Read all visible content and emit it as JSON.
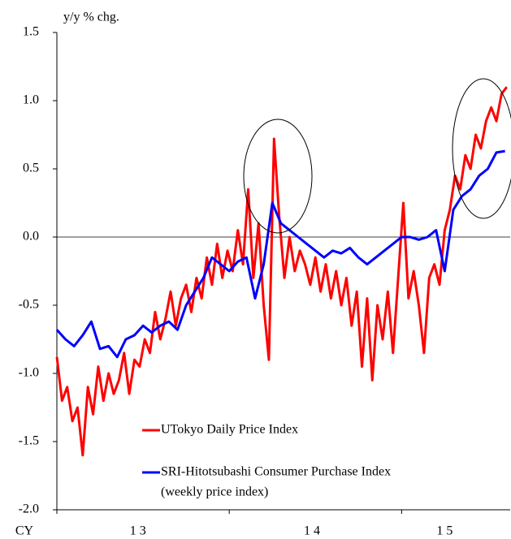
{
  "chart_data": {
    "type": "line",
    "y_label": "y/y % chg.",
    "x_label": "CY",
    "xlim": [
      2013,
      2015.63
    ],
    "ylim": [
      -2,
      1.5
    ],
    "yticks": [
      {
        "value": -2,
        "label": "-2.0"
      },
      -1.5,
      {
        "value": -1,
        "label": "-1.0"
      },
      -0.5,
      {
        "value": 0,
        "label": "0.0"
      },
      0.5,
      {
        "value": 1,
        "label": "1.0"
      },
      1.5
    ],
    "xticks": [
      {
        "value": 2013.47,
        "label": "1 3"
      },
      {
        "value": 2014.48,
        "label": "1 4"
      },
      {
        "value": 2015.25,
        "label": "1 5"
      }
    ],
    "xtick_marks": [
      2013,
      2014,
      2015
    ],
    "zero_line": true,
    "legend_position": "lower-center",
    "series": [
      {
        "name": "UTokyo Daily Price Index",
        "color": "#ff0000",
        "x": [
          2013,
          2013.03,
          2013.06,
          2013.09,
          2013.12,
          2013.15,
          2013.18,
          2013.21,
          2013.24,
          2013.27,
          2013.3,
          2013.33,
          2013.36,
          2013.39,
          2013.42,
          2013.45,
          2013.48,
          2013.51,
          2013.54,
          2013.57,
          2013.6,
          2013.63,
          2013.66,
          2013.69,
          2013.72,
          2013.75,
          2013.78,
          2013.81,
          2013.84,
          2013.87,
          2013.9,
          2013.93,
          2013.96,
          2013.99,
          2014.02,
          2014.05,
          2014.08,
          2014.11,
          2014.14,
          2014.17,
          2014.2,
          2014.23,
          2014.26,
          2014.29,
          2014.32,
          2014.35,
          2014.38,
          2014.41,
          2014.44,
          2014.47,
          2014.5,
          2014.53,
          2014.56,
          2014.59,
          2014.62,
          2014.65,
          2014.68,
          2014.71,
          2014.74,
          2014.77,
          2014.8,
          2014.83,
          2014.86,
          2014.89,
          2014.92,
          2014.95,
          2014.98,
          2015.01,
          2015.04,
          2015.07,
          2015.1,
          2015.13,
          2015.16,
          2015.19,
          2015.22,
          2015.25,
          2015.28,
          2015.31,
          2015.34,
          2015.37,
          2015.4,
          2015.43,
          2015.46,
          2015.49,
          2015.52,
          2015.55,
          2015.58,
          2015.61
        ],
        "values": [
          -0.88,
          -1.2,
          -1.1,
          -1.35,
          -1.25,
          -1.6,
          -1.1,
          -1.3,
          -0.95,
          -1.2,
          -1.0,
          -1.15,
          -1.05,
          -0.85,
          -1.15,
          -0.9,
          -0.95,
          -0.75,
          -0.85,
          -0.55,
          -0.75,
          -0.6,
          -0.4,
          -0.65,
          -0.45,
          -0.35,
          -0.55,
          -0.3,
          -0.45,
          -0.15,
          -0.35,
          -0.05,
          -0.3,
          -0.1,
          -0.25,
          0.05,
          -0.2,
          0.35,
          -0.3,
          0.1,
          -0.5,
          -0.9,
          0.72,
          0.15,
          -0.3,
          0.0,
          -0.25,
          -0.1,
          -0.2,
          -0.35,
          -0.15,
          -0.4,
          -0.2,
          -0.45,
          -0.25,
          -0.5,
          -0.3,
          -0.65,
          -0.4,
          -0.95,
          -0.45,
          -1.05,
          -0.5,
          -0.75,
          -0.4,
          -0.85,
          -0.3,
          0.25,
          -0.45,
          -0.25,
          -0.5,
          -0.85,
          -0.3,
          -0.2,
          -0.35,
          0.05,
          0.2,
          0.45,
          0.35,
          0.6,
          0.5,
          0.75,
          0.65,
          0.85,
          0.95,
          0.85,
          1.05,
          1.1
        ]
      },
      {
        "name": "SRI-Hitotsubashi Consumer Purchase Index",
        "note": "(weekly price index)",
        "color": "#0000ff",
        "x": [
          2013,
          2013.05,
          2013.1,
          2013.15,
          2013.2,
          2013.25,
          2013.3,
          2013.35,
          2013.4,
          2013.45,
          2013.5,
          2013.55,
          2013.6,
          2013.65,
          2013.7,
          2013.75,
          2013.8,
          2013.85,
          2013.9,
          2013.95,
          2014,
          2014.05,
          2014.1,
          2014.15,
          2014.2,
          2014.25,
          2014.3,
          2014.35,
          2014.4,
          2014.45,
          2014.5,
          2014.55,
          2014.6,
          2014.65,
          2014.7,
          2014.75,
          2014.8,
          2014.85,
          2014.9,
          2014.95,
          2015,
          2015.05,
          2015.1,
          2015.15,
          2015.2,
          2015.25,
          2015.3,
          2015.35,
          2015.4,
          2015.45,
          2015.5,
          2015.55,
          2015.6
        ],
        "values": [
          -0.68,
          -0.75,
          -0.8,
          -0.72,
          -0.62,
          -0.82,
          -0.8,
          -0.88,
          -0.75,
          -0.72,
          -0.65,
          -0.7,
          -0.65,
          -0.62,
          -0.68,
          -0.5,
          -0.4,
          -0.3,
          -0.15,
          -0.2,
          -0.25,
          -0.18,
          -0.15,
          -0.45,
          -0.2,
          0.25,
          0.1,
          0.05,
          0.0,
          -0.05,
          -0.1,
          -0.15,
          -0.1,
          -0.12,
          -0.08,
          -0.15,
          -0.2,
          -0.15,
          -0.1,
          -0.05,
          0.0,
          0.0,
          -0.02,
          0.0,
          0.05,
          -0.25,
          0.2,
          0.3,
          0.35,
          0.45,
          0.5,
          0.62,
          0.63
        ]
      }
    ]
  }
}
